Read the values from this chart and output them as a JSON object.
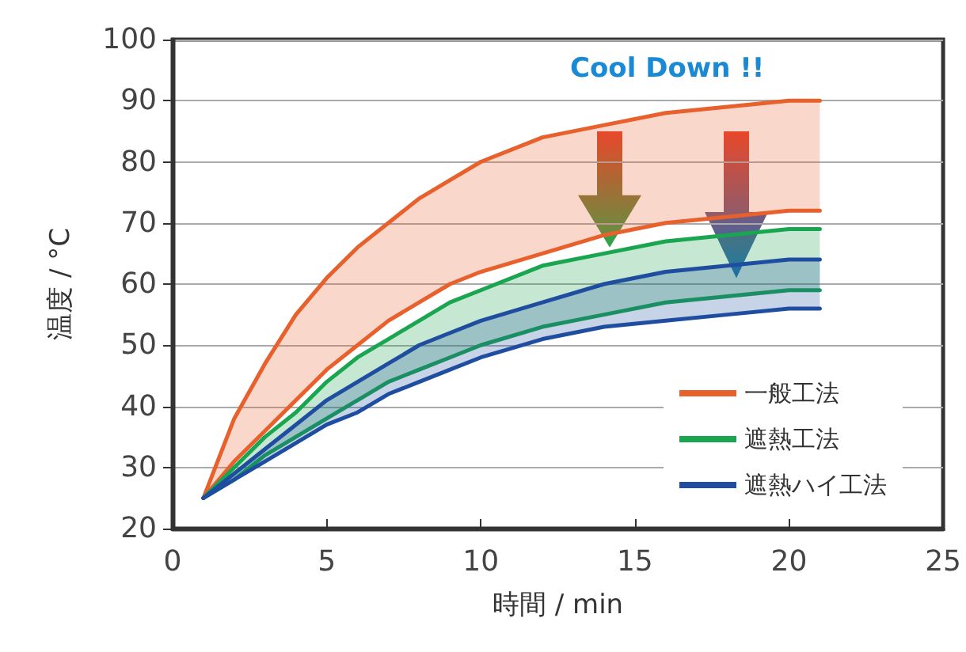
{
  "chart_data": {
    "type": "line",
    "xlabel": "時間 / min",
    "ylabel": "温度 / °C",
    "annotations": [
      "Cool Down !!"
    ],
    "x": [
      1,
      2,
      3,
      4,
      5,
      6,
      7,
      8,
      9,
      10,
      12,
      14,
      16,
      18,
      20,
      21
    ],
    "series": [
      {
        "name": "一般工法",
        "color": "#e8602c",
        "values": [
          25,
          38,
          47,
          55,
          61,
          66,
          70,
          74,
          77,
          80,
          84,
          86,
          88,
          89,
          90,
          90
        ],
        "upper": [
          25,
          38,
          47,
          55,
          61,
          66,
          70,
          74,
          77,
          80,
          84,
          86,
          88,
          89,
          90,
          90
        ],
        "lower": [
          25,
          31,
          36,
          41,
          46,
          50,
          54,
          57,
          60,
          62,
          65,
          68,
          70,
          71,
          72,
          72
        ]
      },
      {
        "color": "#e8602c",
        "values": [
          25,
          31,
          36,
          41,
          46,
          50,
          54,
          57,
          60,
          62,
          65,
          68,
          70,
          71,
          72,
          72
        ]
      },
      {
        "name": "遮熱工法",
        "color": "#1aa550",
        "values": [
          25,
          30,
          35,
          39,
          44,
          48,
          51,
          54,
          57,
          59,
          63,
          65,
          67,
          68,
          69,
          69
        ],
        "upper": [
          25,
          30,
          35,
          39,
          44,
          48,
          51,
          54,
          57,
          59,
          63,
          65,
          67,
          68,
          69,
          69
        ],
        "lower": [
          25,
          28,
          32,
          35,
          38,
          41,
          44,
          46,
          48,
          50,
          53,
          55,
          57,
          58,
          59,
          59
        ]
      },
      {
        "color": "#1aa550",
        "values": [
          25,
          28,
          32,
          35,
          38,
          41,
          44,
          46,
          48,
          50,
          53,
          55,
          57,
          58,
          59,
          59
        ]
      },
      {
        "name": "遮熱ハイ工法",
        "color": "#1f4ea0",
        "values": [
          25,
          29,
          33,
          37,
          41,
          44,
          47,
          50,
          52,
          54,
          57,
          60,
          62,
          63,
          64,
          64
        ],
        "upper": [
          25,
          29,
          33,
          37,
          41,
          44,
          47,
          50,
          52,
          54,
          57,
          60,
          62,
          63,
          64,
          64
        ],
        "lower": [
          25,
          28,
          31,
          34,
          37,
          39,
          42,
          44,
          46,
          48,
          51,
          53,
          54,
          55,
          56,
          56
        ]
      },
      {
        "color": "#1f4ea0",
        "values": [
          25,
          28,
          31,
          34,
          37,
          39,
          42,
          44,
          46,
          48,
          51,
          53,
          54,
          55,
          56,
          56
        ]
      }
    ],
    "xlim": [
      0,
      25
    ],
    "xticks": [
      0,
      5,
      10,
      15,
      20,
      25
    ],
    "ylim": [
      20,
      100
    ],
    "yticks": [
      20,
      30,
      40,
      50,
      60,
      70,
      80,
      90,
      100
    ],
    "grid": "y",
    "legend": "bottom right",
    "marker": "none",
    "line_style": "solid"
  }
}
